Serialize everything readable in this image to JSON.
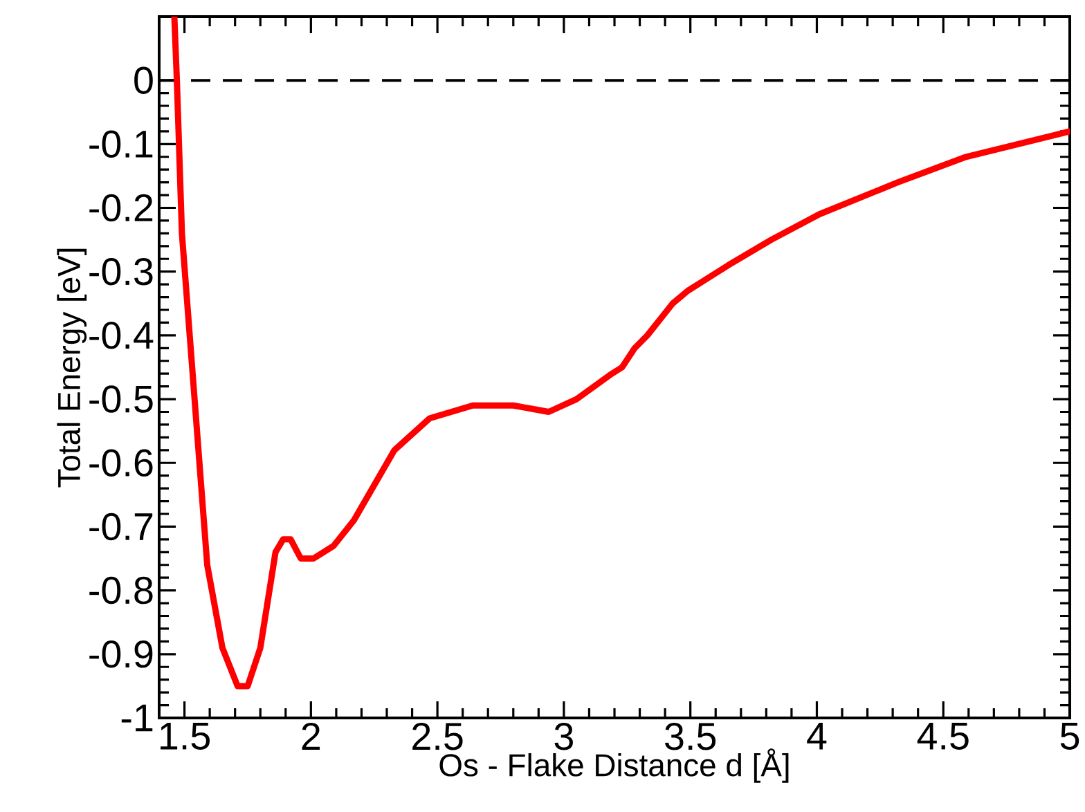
{
  "chart_data": {
    "type": "line",
    "xlabel": "Os - Flake Distance d [Å]",
    "ylabel": "Total Energy [eV]",
    "xlim": [
      1.4,
      5
    ],
    "ylim": [
      -1,
      0.1
    ],
    "xticks": [
      1.5,
      2,
      2.5,
      3,
      3.5,
      4,
      4.5,
      5
    ],
    "yticks": [
      -1,
      -0.9,
      -0.8,
      -0.7,
      -0.6,
      -0.5,
      -0.4,
      -0.3,
      -0.2,
      -0.1,
      0
    ],
    "grid": false,
    "marker": "none",
    "line_style": "solid",
    "ref_lines": [
      {
        "axis": "y",
        "value": 0,
        "color": "#000000",
        "line_style": "dashed"
      }
    ],
    "series": [
      {
        "color": "#ff0000",
        "x": [
          1.46,
          1.47,
          1.49,
          1.59,
          1.65,
          1.71,
          1.75,
          1.8,
          1.86,
          1.89,
          1.92,
          1.96,
          2.01,
          2.09,
          2.17,
          2.33,
          2.47,
          2.64,
          2.8,
          2.94,
          3.05,
          3.19,
          3.23,
          3.28,
          3.33,
          3.39,
          3.43,
          3.49,
          3.65,
          3.82,
          4.01,
          4.32,
          4.59,
          5.0
        ],
        "values": [
          0.1,
          0.0,
          -0.24,
          -0.76,
          -0.89,
          -0.95,
          -0.95,
          -0.89,
          -0.74,
          -0.72,
          -0.72,
          -0.75,
          -0.75,
          -0.73,
          -0.69,
          -0.58,
          -0.53,
          -0.51,
          -0.51,
          -0.52,
          -0.5,
          -0.46,
          -0.45,
          -0.42,
          -0.4,
          -0.37,
          -0.35,
          -0.33,
          -0.29,
          -0.25,
          -0.21,
          -0.16,
          -0.12,
          -0.08
        ]
      }
    ]
  }
}
